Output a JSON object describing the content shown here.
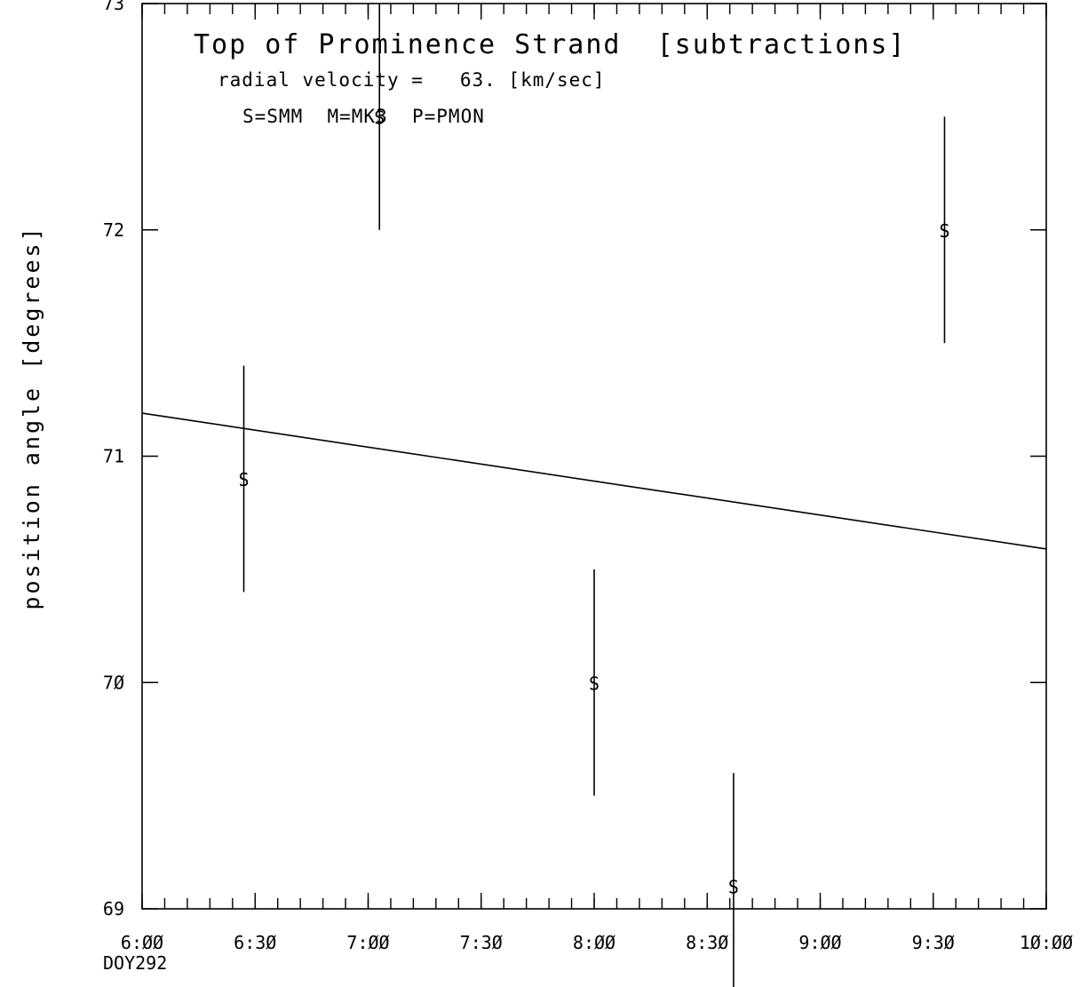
{
  "chart_data": {
    "type": "scatter",
    "title": "Top of Prominence Strand  [subtractions]",
    "annotations": [
      "radial velocity =   63. [km/sec]",
      "S=SMM  M=MK3  P=PMON"
    ],
    "xlabel": "",
    "x_sublabel": "DOY292",
    "ylabel": "position angle [degrees]",
    "x_unit": "minutes after 6:00",
    "xlim": [
      0,
      240
    ],
    "ylim": [
      69,
      73
    ],
    "x_ticks": [
      {
        "label": "6:ØØ",
        "value": 0
      },
      {
        "label": "6:3Ø",
        "value": 30
      },
      {
        "label": "7:ØØ",
        "value": 60
      },
      {
        "label": "7:3Ø",
        "value": 90
      },
      {
        "label": "8:ØØ",
        "value": 120
      },
      {
        "label": "8:3Ø",
        "value": 150
      },
      {
        "label": "9:ØØ",
        "value": 180
      },
      {
        "label": "9:3Ø",
        "value": 210
      },
      {
        "label": "1Ø:ØØ",
        "value": 240
      }
    ],
    "y_ticks": [
      {
        "label": "69",
        "value": 69
      },
      {
        "label": "7Ø",
        "value": 70
      },
      {
        "label": "71",
        "value": 71
      },
      {
        "label": "72",
        "value": 72
      },
      {
        "label": "73",
        "value": 73
      }
    ],
    "minor_tick_step": 6,
    "series": [
      {
        "marker": "S",
        "points": [
          {
            "x": 27,
            "y": 70.9,
            "err": 0.5
          },
          {
            "x": 63,
            "y": 72.5,
            "err": 0.5
          },
          {
            "x": 120,
            "y": 70.0,
            "err": 0.5
          },
          {
            "x": 157,
            "y": 69.1,
            "err": 0.5
          },
          {
            "x": 213,
            "y": 72.0,
            "err": 0.5
          }
        ]
      }
    ],
    "fit_line": {
      "x": [
        0,
        240
      ],
      "y": [
        71.19,
        70.59
      ]
    },
    "grid": false
  }
}
